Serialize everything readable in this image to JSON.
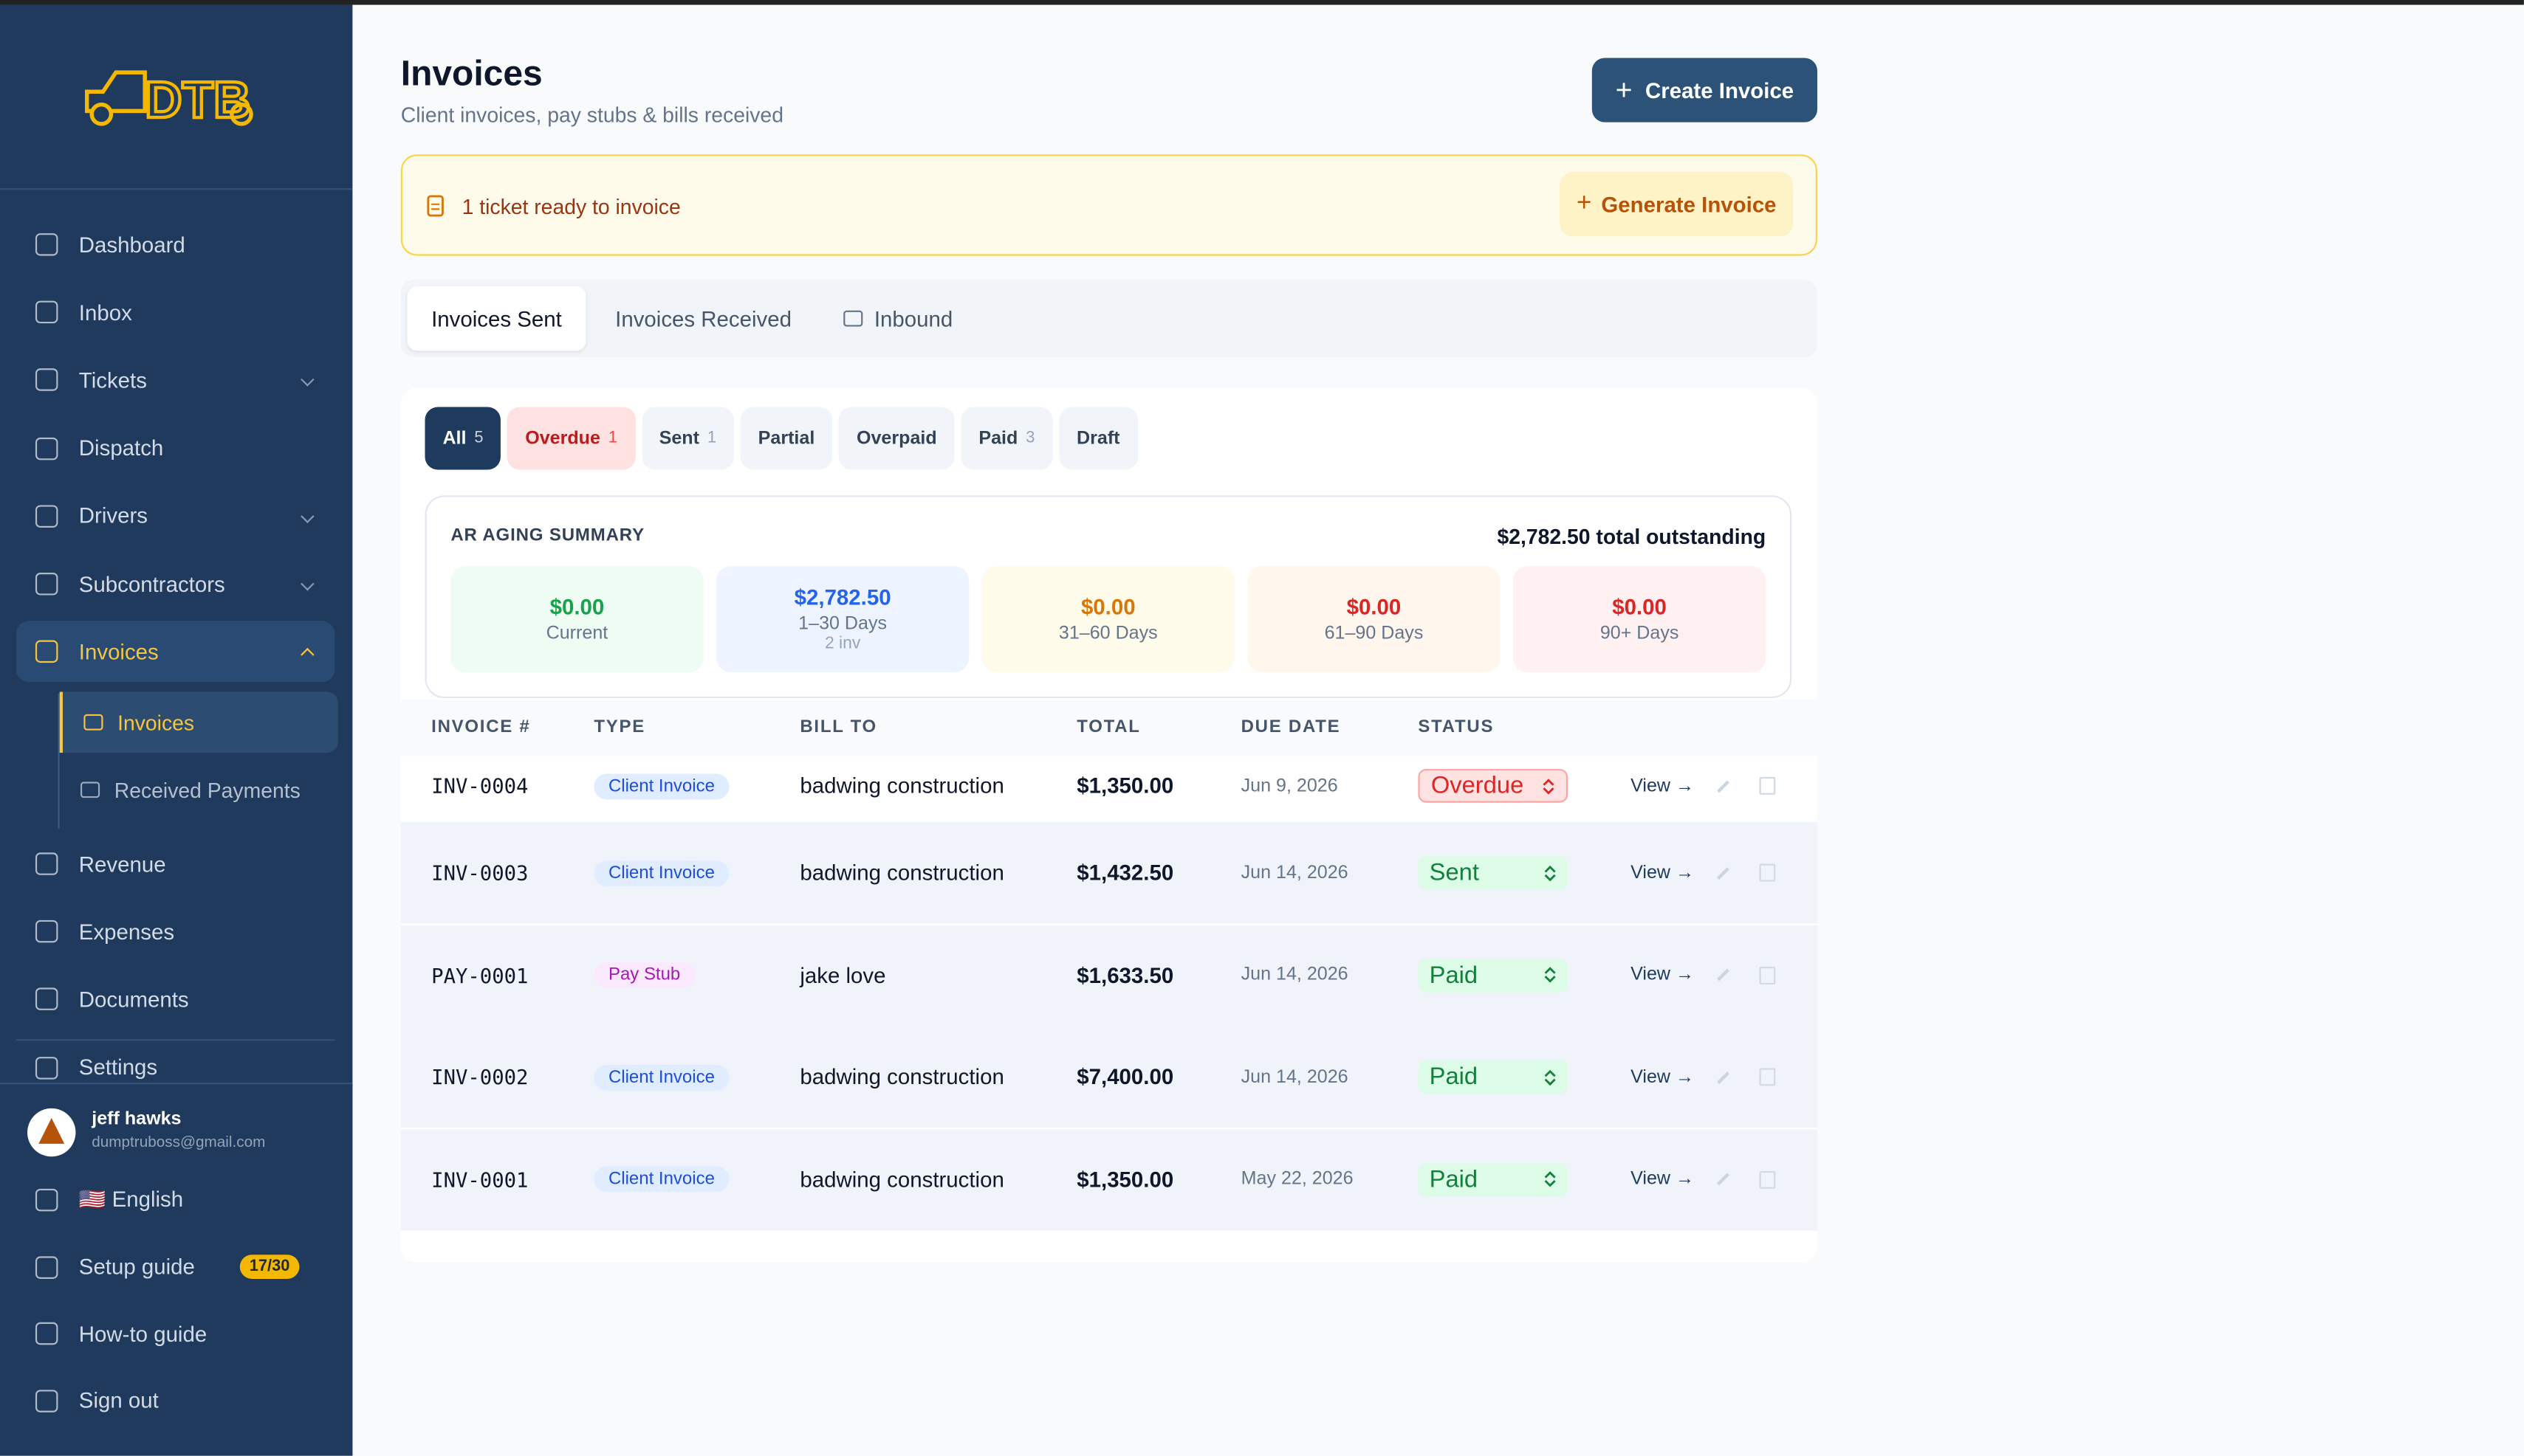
{
  "sidebar": {
    "logo": "DTB",
    "nav": [
      {
        "label": "Dashboard"
      },
      {
        "label": "Inbox"
      },
      {
        "label": "Tickets",
        "expandable": true
      },
      {
        "label": "Dispatch"
      },
      {
        "label": "Drivers",
        "expandable": true
      },
      {
        "label": "Subcontractors",
        "expandable": true
      },
      {
        "label": "Invoices",
        "expandable": true,
        "active": true
      }
    ],
    "subnav": [
      {
        "label": "Invoices",
        "active": true
      },
      {
        "label": "Received Payments"
      }
    ],
    "nav2": [
      {
        "label": "Revenue"
      },
      {
        "label": "Expenses"
      },
      {
        "label": "Documents"
      },
      {
        "label": "Settings"
      }
    ],
    "user": {
      "name": "jeff hawks",
      "email": "dumptruboss@gmail.com"
    },
    "footer": [
      {
        "label": "🇺🇸 English"
      },
      {
        "label": "Setup guide",
        "badge": "17/30"
      },
      {
        "label": "How-to guide"
      },
      {
        "label": "Sign out"
      }
    ]
  },
  "header": {
    "title": "Invoices",
    "subtitle": "Client invoices, pay stubs & bills received",
    "button": "Create Invoice"
  },
  "banner": {
    "text": "1 ticket ready to invoice",
    "button": "Generate Invoice"
  },
  "tabs": [
    {
      "label": "Invoices Sent",
      "active": true
    },
    {
      "label": "Invoices Received"
    },
    {
      "label": "Inbound"
    }
  ],
  "filters": [
    {
      "label": "All",
      "count": 5,
      "color": "navy"
    },
    {
      "label": "Overdue",
      "count": 1,
      "color": "red"
    },
    {
      "label": "Sent",
      "count": 1
    },
    {
      "label": "Partial"
    },
    {
      "label": "Overpaid"
    },
    {
      "label": "Paid",
      "count": 3
    },
    {
      "label": "Draft"
    }
  ],
  "aging": {
    "title": "AR AGING SUMMARY",
    "total": "$2,782.50 total outstanding",
    "buckets": [
      {
        "amount": "$0.00",
        "label": "Current",
        "color": "green"
      },
      {
        "amount": "$2,782.50",
        "label": "1–30 Days",
        "note": "2 inv",
        "color": "blue"
      },
      {
        "amount": "$0.00",
        "label": "31–60 Days",
        "color": "yellow"
      },
      {
        "amount": "$0.00",
        "label": "61–90 Days",
        "color": "orange"
      },
      {
        "amount": "$0.00",
        "label": "90+ Days",
        "color": "red"
      }
    ]
  },
  "table": {
    "columns": [
      "INVOICE #",
      "TYPE",
      "BILL TO",
      "TOTAL",
      "DUE DATE",
      "STATUS"
    ],
    "rows": [
      {
        "number": "INV-0004",
        "type": "Client Invoice",
        "type_color": "blue",
        "bill_to": "badwing construction",
        "total": "$1,350.00",
        "due": "Jun 9, 2026",
        "status": "Overdue",
        "status_color": "red",
        "action": "View →"
      },
      {
        "number": "INV-0003",
        "type": "Client Invoice",
        "type_color": "blue",
        "bill_to": "badwing construction",
        "total": "$1,432.50",
        "due": "Jun 14, 2026",
        "status": "Sent",
        "status_color": "green",
        "action": "View →"
      },
      {
        "number": "PAY-0001",
        "type": "Pay Stub",
        "type_color": "purple",
        "bill_to": "jake love",
        "total": "$1,633.50",
        "due": "Jun 14, 2026",
        "status": "Paid",
        "status_color": "green",
        "action": "View →"
      },
      {
        "number": "INV-0002",
        "type": "Client Invoice",
        "type_color": "blue",
        "bill_to": "badwing construction",
        "total": "$7,400.00",
        "due": "Jun 14, 2026",
        "status": "Paid",
        "status_color": "green",
        "action": "View →"
      },
      {
        "number": "INV-0001",
        "type": "Client Invoice",
        "type_color": "blue",
        "bill_to": "badwing construction",
        "total": "$1,350.00",
        "due": "May 22, 2026",
        "status": "Paid",
        "status_color": "green",
        "action": "View →"
      }
    ]
  }
}
